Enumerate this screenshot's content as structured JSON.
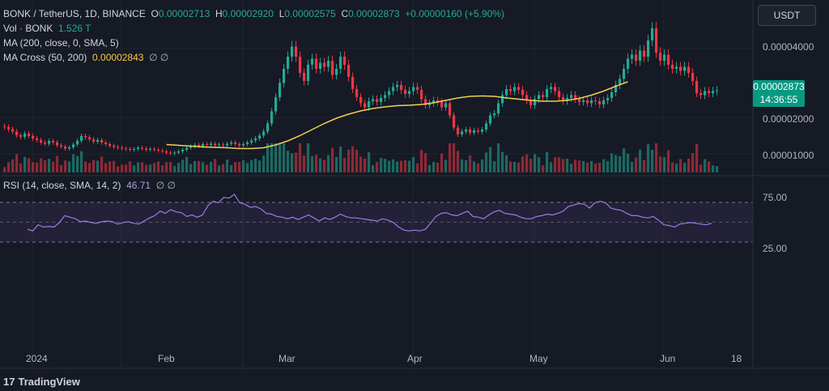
{
  "header": {
    "symbol": "BONK / TetherUS, 1D, BINANCE",
    "o_label": "O",
    "o_value": "0.00002713",
    "h_label": "H",
    "h_value": "0.00002920",
    "l_label": "L",
    "l_value": "0.00002575",
    "c_label": "C",
    "c_value": "0.00002873",
    "change": "+0.00000160 (+5.90%)"
  },
  "indicators": {
    "vol_label": "Vol · BONK",
    "vol_value": "1.526 T",
    "ma_label": "MA (200, close, 0, SMA, 5)",
    "ma_cross_label": "MA Cross (50, 200)",
    "ma_cross_value": "0.00002843",
    "ma_cross_extra": "∅ ∅",
    "rsi_label": "RSI (14, close, SMA, 14, 2)",
    "rsi_value": "46.71",
    "rsi_extra": "∅ ∅"
  },
  "currency_button": "USDT",
  "price_tag": {
    "price": "0.00002873",
    "countdown": "14:36:55"
  },
  "price_axis": [
    "0.00004000",
    "0.00002000",
    "0.00001000"
  ],
  "rsi_axis": [
    "75.00",
    "25.00"
  ],
  "time_axis": [
    "2024",
    "Feb",
    "Mar",
    "Apr",
    "May",
    "Jun",
    "18"
  ],
  "brand": "TradingView",
  "colors": {
    "up": "#22ab94",
    "down": "#f23645",
    "ma": "#f0cf54",
    "rsi": "#9b7de0",
    "bg": "#161a25"
  },
  "chart_data": {
    "type": "candlestick",
    "title": "BONK / TetherUS, 1D, BINANCE",
    "ylim": [
      9e-06,
      4.7e-05
    ],
    "closes": [
      1.96e-05,
      1.91e-05,
      1.85e-05,
      1.76e-05,
      1.72e-05,
      1.8e-05,
      1.74e-05,
      1.68e-05,
      1.64e-05,
      1.58e-05,
      1.55e-05,
      1.62e-05,
      1.58e-05,
      1.51e-05,
      1.48e-05,
      1.43e-05,
      1.46e-05,
      1.53e-05,
      1.62e-05,
      1.74e-05,
      1.71e-05,
      1.66e-05,
      1.6e-05,
      1.64e-05,
      1.58e-05,
      1.54e-05,
      1.5e-05,
      1.47e-05,
      1.45e-05,
      1.43e-05,
      1.42e-05,
      1.4e-05,
      1.42e-05,
      1.45e-05,
      1.43e-05,
      1.4e-05,
      1.42e-05,
      1.4e-05,
      1.38e-05,
      1.36e-05,
      1.33e-05,
      1.31e-05,
      1.33e-05,
      1.36e-05,
      1.4e-05,
      1.45e-05,
      1.48e-05,
      1.52e-05,
      1.49e-05,
      1.54e-05,
      1.52e-05,
      1.55e-05,
      1.51e-05,
      1.53e-05,
      1.51e-05,
      1.55e-05,
      1.58e-05,
      1.54e-05,
      1.51e-05,
      1.54e-05,
      1.58e-05,
      1.63e-05,
      1.68e-05,
      1.75e-05,
      1.85e-05,
      2.05e-05,
      2.35e-05,
      2.7e-05,
      3.05e-05,
      3.4e-05,
      3.7e-05,
      3.95e-05,
      3.7e-05,
      3.3e-05,
      3.1e-05,
      3.5e-05,
      3.65e-05,
      3.4e-05,
      3.55e-05,
      3.45e-05,
      3.6e-05,
      3.25e-05,
      3.4e-05,
      3.7e-05,
      3.5e-05,
      3.2e-05,
      2.9e-05,
      2.7e-05,
      2.55e-05,
      2.45e-05,
      2.6e-05,
      2.65e-05,
      2.58e-05,
      2.68e-05,
      2.75e-05,
      2.85e-05,
      2.95e-05,
      3e-05,
      2.88e-05,
      2.78e-05,
      2.85e-05,
      2.95e-05,
      2.88e-05,
      2.65e-05,
      2.5e-05,
      2.55e-05,
      2.62e-05,
      2.58e-05,
      2.45e-05,
      2.55e-05,
      2.25e-05,
      1.95e-05,
      1.78e-05,
      1.85e-05,
      1.9e-05,
      1.82e-05,
      1.88e-05,
      1.85e-05,
      1.9e-05,
      2.05e-05,
      2.25e-05,
      2.3e-05,
      2.55e-05,
      2.75e-05,
      2.9e-05,
      2.85e-05,
      2.95e-05,
      2.88e-05,
      2.75e-05,
      2.62e-05,
      2.5e-05,
      2.65e-05,
      2.75e-05,
      2.7e-05,
      2.9e-05,
      2.95e-05,
      2.85e-05,
      2.7e-05,
      2.6e-05,
      2.68e-05,
      2.75e-05,
      2.65e-05,
      2.58e-05,
      2.62e-05,
      2.55e-05,
      2.62e-05,
      2.6e-05,
      2.52e-05,
      2.62e-05,
      2.68e-05,
      2.82e-05,
      3e-05,
      3.15e-05,
      3.4e-05,
      3.65e-05,
      3.75e-05,
      3.6e-05,
      3.85e-05,
      3.7e-05,
      4.1e-05,
      4.4e-05,
      3.8e-05,
      3.6e-05,
      3.75e-05,
      3.5e-05,
      3.4e-05,
      3.45e-05,
      3.35e-05,
      3.45e-05,
      3.3e-05,
      3.1e-05,
      2.8e-05,
      2.75e-05,
      2.85e-05,
      2.8e-05,
      2.85e-05,
      2.87e-05
    ],
    "ma200": [
      1.53e-05,
      1.51e-05,
      1.49e-05,
      1.47e-05,
      1.46e-05,
      1.45e-05,
      1.43e-05,
      1.43e-05,
      1.45e-05,
      1.52e-05,
      1.62e-05,
      1.75e-05,
      1.9e-05,
      2.05e-05,
      2.18e-05,
      2.28e-05,
      2.36e-05,
      2.42e-05,
      2.46e-05,
      2.49e-05,
      2.5e-05,
      2.52e-05,
      2.56e-05,
      2.62e-05,
      2.68e-05,
      2.72e-05,
      2.73e-05,
      2.72e-05,
      2.68e-05,
      2.65e-05,
      2.62e-05,
      2.6e-05,
      2.6e-05,
      2.62e-05,
      2.67e-05,
      2.75e-05,
      2.85e-05,
      2.97e-05,
      3.08e-05
    ],
    "ma_start": 40,
    "rsi": [
      39,
      37,
      45,
      42,
      43,
      42,
      48,
      57,
      55,
      53,
      49,
      50,
      48,
      47,
      49,
      50,
      49,
      46,
      48,
      49,
      47,
      46,
      50,
      54,
      57,
      63,
      60,
      65,
      62,
      61,
      56,
      58,
      55,
      58,
      70,
      76,
      74,
      81,
      80,
      85,
      74,
      72,
      68,
      69,
      66,
      60,
      59,
      56,
      55,
      53,
      55,
      52,
      55,
      58,
      54,
      50,
      54,
      52,
      55,
      59,
      56,
      54,
      54,
      53,
      52,
      51,
      50,
      53,
      51,
      48,
      42,
      38,
      37,
      38,
      37,
      39,
      47,
      56,
      60,
      61,
      58,
      57,
      60,
      63,
      56,
      55,
      53,
      58,
      62,
      64,
      60,
      59,
      58,
      55,
      53,
      53,
      56,
      57,
      59,
      58,
      60,
      63,
      69,
      71,
      73,
      72,
      67,
      74,
      76,
      74,
      67,
      65,
      64,
      60,
      57,
      57,
      55,
      54,
      56,
      51,
      45,
      44,
      42,
      46,
      47,
      48,
      47,
      46,
      45,
      47
    ]
  }
}
